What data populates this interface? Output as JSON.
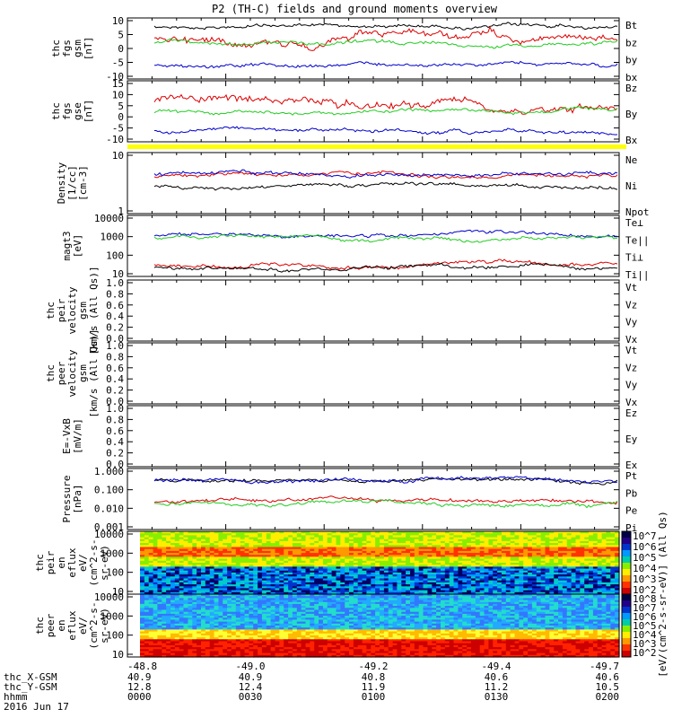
{
  "title": "P2 (TH-C) fields and ground moments overview",
  "colors": {
    "black": "#000000",
    "red": "#dd0000",
    "green": "#22cc22",
    "blue": "#0000cc",
    "yellow": "#ffff00"
  },
  "chart_data": [
    {
      "type": "line",
      "panel": "fgs_gsm",
      "ylabel": [
        "thc",
        "fgs",
        "gsm",
        "[nT]"
      ],
      "yticks": [
        "10",
        "5",
        "0",
        "-5",
        "-10"
      ],
      "ylim": [
        -10,
        10
      ],
      "series": [
        {
          "name": "Bt",
          "color": "#000000",
          "level": 8
        },
        {
          "name": "bz",
          "color": "#dd0000",
          "level": 4
        },
        {
          "name": "by",
          "color": "#22cc22",
          "level": 2
        },
        {
          "name": "bx",
          "color": "#0000cc",
          "level": -6
        }
      ]
    },
    {
      "type": "line",
      "panel": "fgs_gse",
      "ylabel": [
        "thc",
        "fgs",
        "gse",
        "[nT]"
      ],
      "yticks": [
        "15",
        "10",
        "5",
        "0",
        "-5",
        "-10"
      ],
      "ylim": [
        -12,
        16
      ],
      "series": [
        {
          "name": "Bz",
          "color": "#dd0000",
          "level": 7
        },
        {
          "name": "By",
          "color": "#22cc22",
          "level": 2
        },
        {
          "name": "Bx",
          "color": "#0000cc",
          "level": -8
        }
      ]
    },
    {
      "type": "line",
      "panel": "density",
      "ylabel": [
        "Density",
        "[1/cc]",
        "[cm-3]"
      ],
      "yticks": [
        "10",
        "1"
      ],
      "log": true,
      "series": [
        {
          "name": "Ne",
          "color": "#dd0000",
          "level": 4.2
        },
        {
          "name": "Ni",
          "color": "#000000",
          "level": 2.8
        },
        {
          "name": "Npot",
          "color": "#0000cc",
          "level": 4.5
        }
      ]
    },
    {
      "type": "line",
      "panel": "temperature",
      "ylabel": [
        "magt3",
        "[eV]"
      ],
      "yticks": [
        "10000",
        "1000",
        "100",
        "10"
      ],
      "log": true,
      "series": [
        {
          "name": "Te⊥",
          "color": "#dd0000",
          "level": 28
        },
        {
          "name": "Te||",
          "color": "#000000",
          "level": 22
        },
        {
          "name": "Ti⊥",
          "color": "#0000cc",
          "level": 1150
        },
        {
          "name": "Ti||",
          "color": "#22cc22",
          "level": 850
        }
      ]
    },
    {
      "type": "line",
      "panel": "peir_velocity",
      "ylabel": [
        "thc",
        "peir",
        "velocity",
        "gsm",
        "[km/s (All Qs)]"
      ],
      "yticks": [
        "1.0",
        "0.8",
        "0.6",
        "0.4",
        "0.2",
        "0.0"
      ],
      "series": [
        {
          "name": "Vt",
          "color": "#000000"
        },
        {
          "name": "Vz",
          "color": "#dd0000"
        },
        {
          "name": "Vy",
          "color": "#22cc22"
        },
        {
          "name": "Vx",
          "color": "#0000cc"
        }
      ]
    },
    {
      "type": "line",
      "panel": "peer_velocity",
      "ylabel": [
        "thc",
        "peer",
        "velocity",
        "gsm",
        "[km/s (All Qs)]"
      ],
      "yticks": [
        "1.0",
        "0.8",
        "0.6",
        "0.4",
        "0.2",
        "0.0"
      ],
      "series": [
        {
          "name": "Vt",
          "color": "#000000"
        },
        {
          "name": "Vz",
          "color": "#dd0000"
        },
        {
          "name": "Vy",
          "color": "#22cc22"
        },
        {
          "name": "Vx",
          "color": "#0000cc"
        }
      ]
    },
    {
      "type": "line",
      "panel": "efield",
      "ylabel": [
        "E=-VxB",
        "[mV/m]"
      ],
      "yticks": [
        "1.0",
        "0.8",
        "0.6",
        "0.4",
        "0.2",
        "0.0"
      ],
      "series": [
        {
          "name": "Ez",
          "color": "#dd0000"
        },
        {
          "name": "Ey",
          "color": "#22cc22"
        },
        {
          "name": "Ex",
          "color": "#0000cc"
        }
      ]
    },
    {
      "type": "line",
      "panel": "pressure",
      "ylabel": [
        "Pressure",
        "[nPa]"
      ],
      "yticks": [
        "1.000",
        "0.100",
        "0.010",
        "0.001"
      ],
      "log": true,
      "series": [
        {
          "name": "Pt",
          "color": "#000000",
          "level": 0.35
        },
        {
          "name": "Pb",
          "color": "#dd0000",
          "level": 0.025
        },
        {
          "name": "Pe",
          "color": "#22cc22",
          "level": 0.015
        },
        {
          "name": "Pi",
          "color": "#0000cc",
          "level": 0.33
        }
      ]
    },
    {
      "type": "heatmap",
      "panel": "peir_eflux",
      "ylabel": [
        "thc",
        "peir",
        "en",
        "eflux",
        "eV/",
        "(cm^2-s-",
        "sr-eV)"
      ],
      "yticks": [
        "10000",
        "1000",
        "100",
        "10"
      ],
      "colorbar": {
        "label": "[eV/(cm^2-s-sr-eV)] (All Qs)",
        "ticks": [
          "10^7",
          "10^6",
          "10^5",
          "10^4",
          "10^3",
          "10^2"
        ]
      }
    },
    {
      "type": "heatmap",
      "panel": "peer_eflux",
      "ylabel": [
        "thc",
        "peer",
        "en",
        "eflux",
        "eV/",
        "(cm^2-s-",
        "sr-eV)"
      ],
      "yticks": [
        "10000",
        "1000",
        "100",
        "10"
      ],
      "colorbar": {
        "label": "[eV/(cm^2-s-sr-eV)] (All Qs)",
        "ticks": [
          "10^8",
          "10^7",
          "10^6",
          "10^5",
          "10^4",
          "10^3",
          "10^2"
        ]
      }
    }
  ],
  "xaxis": {
    "ticks": [
      "-48.8",
      "-49.0",
      "-49.2",
      "-49.4",
      "-49.7"
    ],
    "rows": [
      {
        "label": "thc_X-GSM",
        "values": [
          "40.9",
          "40.9",
          "40.8",
          "40.6",
          "40.6"
        ]
      },
      {
        "label": "thc_Y-GSM",
        "values": [
          "12.8",
          "12.4",
          "11.9",
          "11.2",
          "10.5"
        ]
      },
      {
        "label": "hhmm",
        "values": [
          "0000",
          "0030",
          "0100",
          "0130",
          "0200"
        ]
      }
    ],
    "date": "2016 Jun 17"
  }
}
